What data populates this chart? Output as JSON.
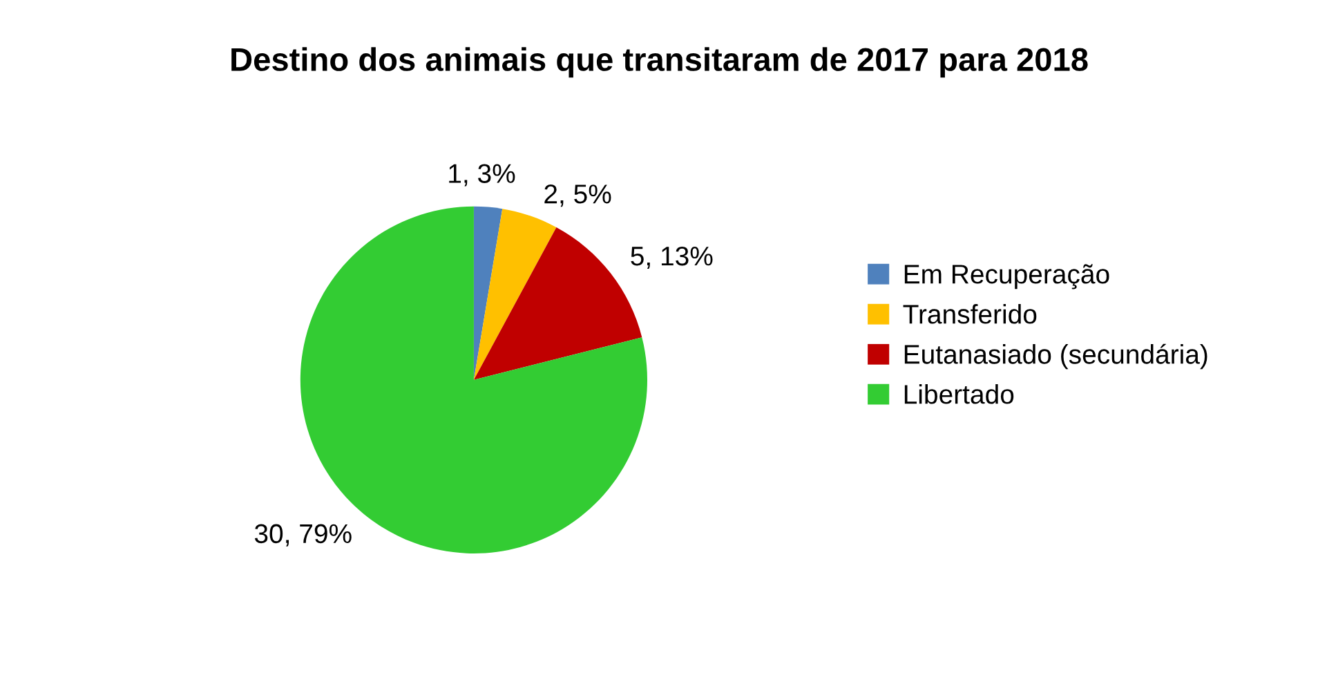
{
  "chart_data": {
    "type": "pie",
    "title": "Destino dos animais que transitaram de 2017 para 2018",
    "categories": [
      "Em Recuperação",
      "Transferido",
      "Eutanasiado (secundária)",
      "Libertado"
    ],
    "values": [
      1,
      2,
      5,
      30
    ],
    "colors": [
      "#4f81bd",
      "#ffc000",
      "#c00000",
      "#33cc33"
    ],
    "value_labels": [
      "1, 3%",
      "2, 5%",
      "5, 13%",
      "30, 79%"
    ],
    "legend": "right"
  }
}
